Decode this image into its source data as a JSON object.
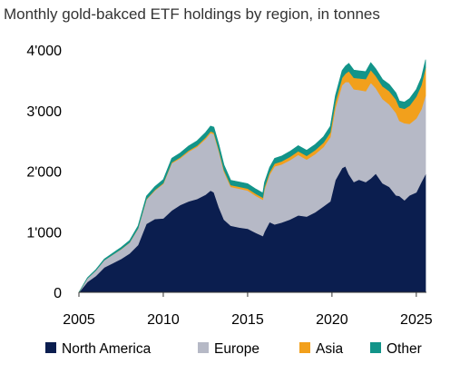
{
  "chart_data": {
    "type": "area",
    "stacked": true,
    "title": "Monthly gold-bakced ETF holdings by region, in tonnes",
    "xlabel": "",
    "ylabel": "",
    "xlim": [
      2005,
      2025.6
    ],
    "ylim": [
      0,
      4000
    ],
    "x_ticks": [
      2005,
      2010,
      2015,
      2020,
      2025
    ],
    "x_tick_labels": [
      "2005",
      "2010",
      "2015",
      "2020",
      "2025"
    ],
    "y_ticks": [
      0,
      1000,
      2000,
      3000,
      4000
    ],
    "y_tick_labels": [
      "0",
      "1'000",
      "2'000",
      "3'000",
      "4'000"
    ],
    "grid": false,
    "legend_position": "bottom",
    "x": [
      2005.0,
      2005.5,
      2006.0,
      2006.5,
      2007.0,
      2007.5,
      2008.0,
      2008.5,
      2009.0,
      2009.5,
      2010.0,
      2010.5,
      2011.0,
      2011.5,
      2012.0,
      2012.5,
      2012.8,
      2013.0,
      2013.3,
      2013.6,
      2014.0,
      2014.5,
      2015.0,
      2015.5,
      2015.9,
      2016.0,
      2016.3,
      2016.6,
      2017.0,
      2017.5,
      2018.0,
      2018.5,
      2019.0,
      2019.5,
      2019.9,
      2020.2,
      2020.6,
      2020.8,
      2021.0,
      2021.3,
      2021.6,
      2022.0,
      2022.3,
      2022.6,
      2023.0,
      2023.4,
      2023.8,
      2024.0,
      2024.3,
      2024.6,
      2025.0,
      2025.3,
      2025.55
    ],
    "series": [
      {
        "name": "North America",
        "color": "#0b1e4f",
        "values": [
          0,
          170,
          270,
          410,
          480,
          550,
          640,
          780,
          1130,
          1210,
          1220,
          1350,
          1440,
          1500,
          1540,
          1610,
          1680,
          1650,
          1400,
          1200,
          1100,
          1070,
          1050,
          980,
          930,
          1000,
          1160,
          1120,
          1150,
          1200,
          1270,
          1250,
          1320,
          1420,
          1500,
          1850,
          2050,
          2080,
          1950,
          1820,
          1860,
          1820,
          1880,
          1960,
          1800,
          1740,
          1600,
          1590,
          1520,
          1600,
          1650,
          1820,
          1950
        ]
      },
      {
        "name": "Europe",
        "color": "#b6b9c6",
        "values": [
          0,
          60,
          90,
          120,
          140,
          160,
          180,
          270,
          400,
          470,
          570,
          780,
          770,
          820,
          860,
          920,
          950,
          960,
          920,
          790,
          640,
          640,
          630,
          610,
          600,
          700,
          780,
          960,
          960,
          980,
          1000,
          940,
          960,
          980,
          1060,
          1190,
          1370,
          1390,
          1520,
          1530,
          1480,
          1500,
          1580,
          1410,
          1390,
          1360,
          1360,
          1240,
          1270,
          1180,
          1220,
          1200,
          1300
        ]
      },
      {
        "name": "Asia",
        "color": "#f2a01c",
        "values": [
          0,
          0,
          0,
          0,
          2,
          3,
          4,
          5,
          8,
          10,
          12,
          15,
          18,
          20,
          22,
          25,
          27,
          28,
          28,
          28,
          30,
          32,
          33,
          33,
          33,
          36,
          40,
          45,
          50,
          55,
          60,
          62,
          66,
          72,
          78,
          96,
          120,
          140,
          180,
          190,
          190,
          200,
          210,
          200,
          210,
          220,
          220,
          220,
          240,
          300,
          360,
          400,
          460
        ]
      },
      {
        "name": "Other",
        "color": "#129489",
        "values": [
          0,
          10,
          15,
          20,
          25,
          28,
          32,
          40,
          50,
          55,
          60,
          68,
          72,
          75,
          78,
          82,
          86,
          88,
          88,
          86,
          80,
          80,
          80,
          80,
          78,
          80,
          82,
          86,
          88,
          90,
          92,
          92,
          94,
          98,
          102,
          110,
          120,
          125,
          130,
          128,
          126,
          124,
          122,
          118,
          114,
          112,
          110,
          108,
          110,
          118,
          120,
          125,
          130
        ]
      }
    ]
  }
}
